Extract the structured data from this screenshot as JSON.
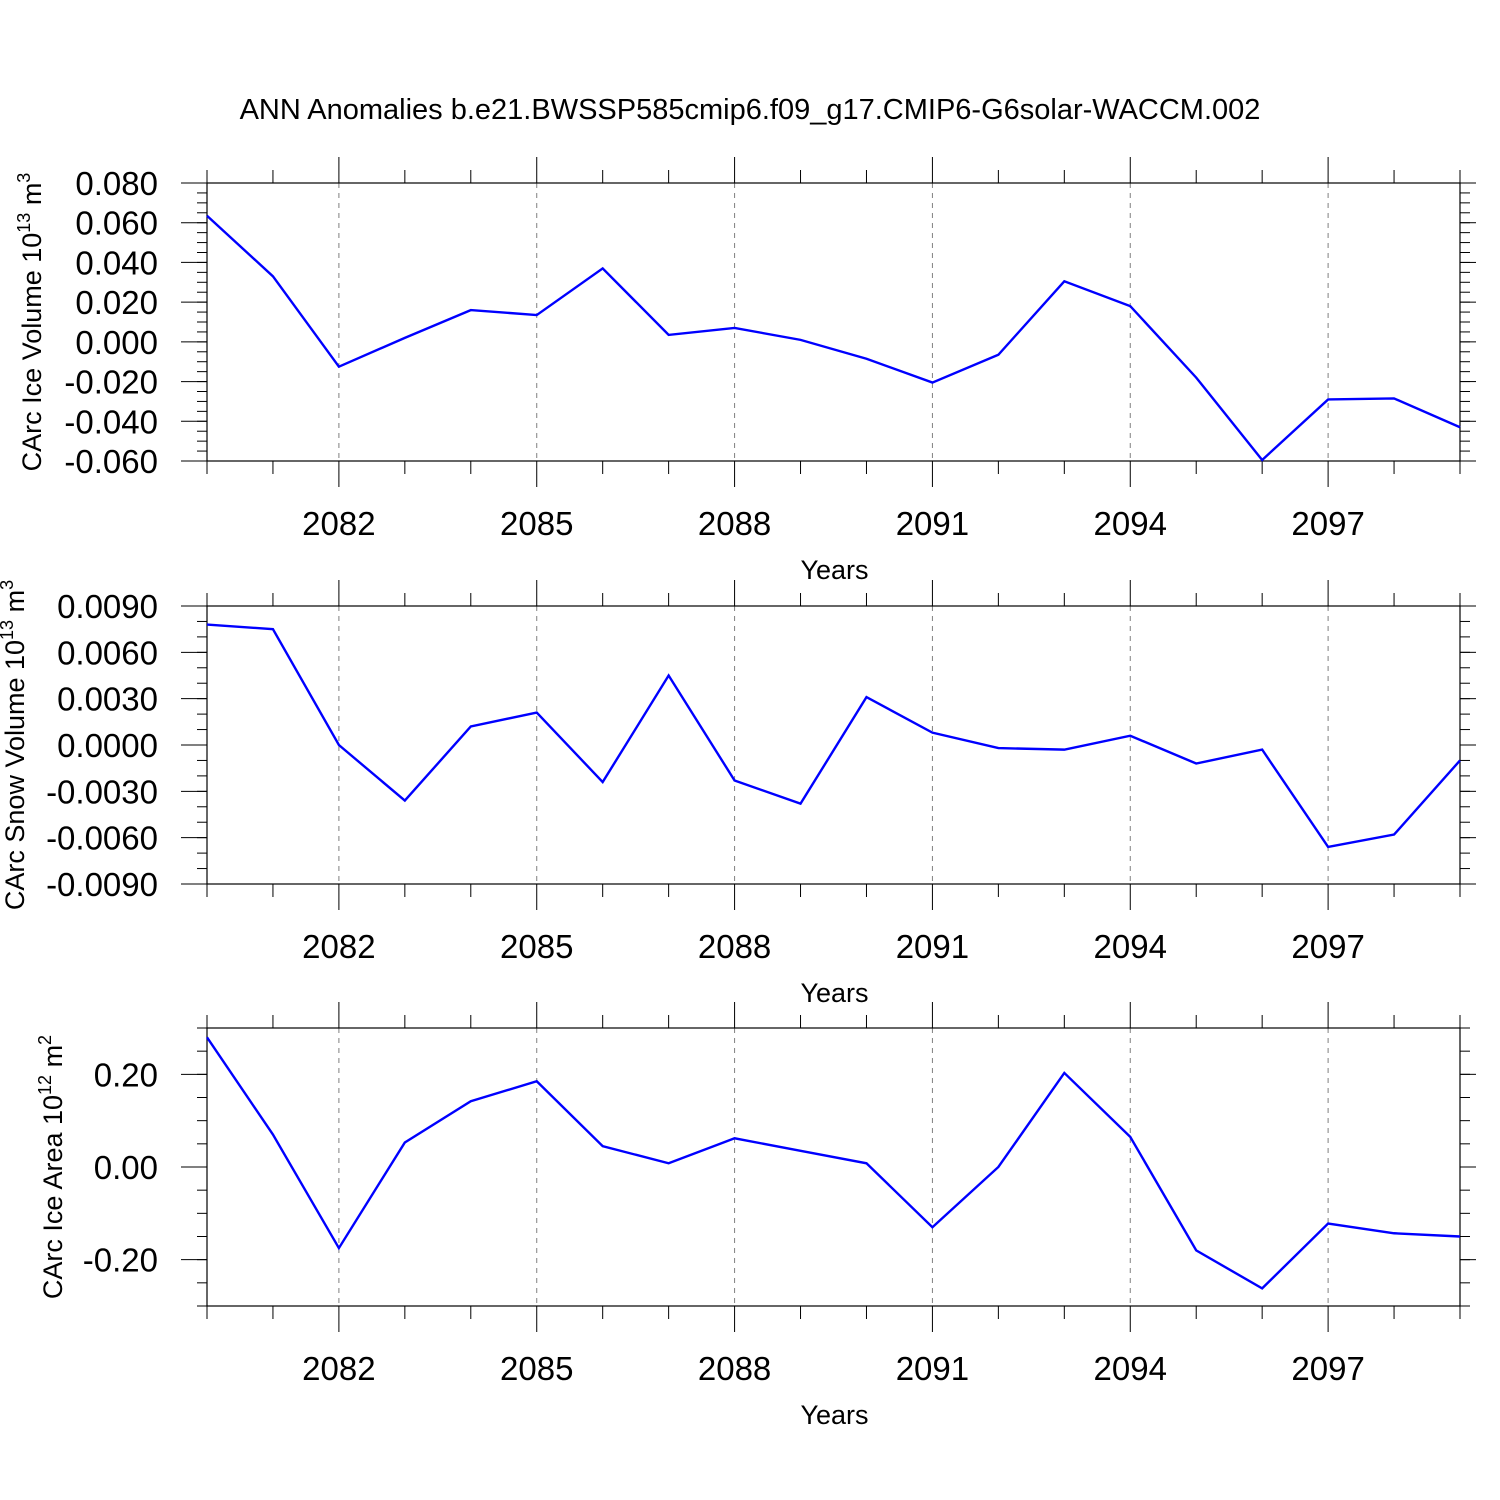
{
  "title": "ANN Anomalies b.e21.BWSSP585cmip6.f09_g17.CMIP6-G6solar-WACCM.002",
  "colors": {
    "line": "#0000ff",
    "axis": "#000000",
    "grid": "#808080",
    "background": "#ffffff"
  },
  "chart_data": [
    {
      "type": "line",
      "ylabel": "CArc Ice Volume 10",
      "ylabel_exp": "13",
      "ylabel_unit": " m",
      "ylabel_unit_exp": "3",
      "xlabel": "Years",
      "xlim": [
        2080,
        2099
      ],
      "ylim": [
        -0.06,
        0.08
      ],
      "yticks": [
        -0.06,
        -0.04,
        -0.02,
        0.0,
        0.02,
        0.04,
        0.06,
        0.08
      ],
      "ytick_labels": [
        "-0.060",
        "-0.040",
        "-0.020",
        "0.000",
        "0.020",
        "0.040",
        "0.060",
        "0.080"
      ],
      "yminor_step": 0.005,
      "xticks": [
        2082,
        2085,
        2088,
        2091,
        2094,
        2097
      ],
      "xtick_labels": [
        "2082",
        "2085",
        "2088",
        "2091",
        "2094",
        "2097"
      ],
      "grid": "vertical-dashed",
      "series": [
        {
          "x": [
            2080,
            2081,
            2082,
            2083,
            2084,
            2085,
            2086,
            2087,
            2088,
            2089,
            2090,
            2091,
            2092,
            2093,
            2094,
            2095,
            2096,
            2097,
            2098,
            2099
          ],
          "values": [
            0.0635,
            0.033,
            -0.0125,
            0.002,
            0.016,
            0.0135,
            0.037,
            0.0035,
            0.007,
            0.001,
            -0.0085,
            -0.0205,
            -0.0065,
            0.0305,
            0.018,
            -0.018,
            -0.0595,
            -0.029,
            -0.0285,
            -0.043
          ]
        }
      ]
    },
    {
      "type": "line",
      "ylabel": "CArc Snow Volume 10",
      "ylabel_exp": "13",
      "ylabel_unit": " m",
      "ylabel_unit_exp": "3",
      "xlabel": "Years",
      "xlim": [
        2080,
        2099
      ],
      "ylim": [
        -0.009,
        0.009
      ],
      "yticks": [
        -0.009,
        -0.006,
        -0.003,
        0.0,
        0.003,
        0.006,
        0.009
      ],
      "ytick_labels": [
        "-0.0090",
        "-0.0060",
        "-0.0030",
        "0.0000",
        "0.0030",
        "0.0060",
        "0.0090"
      ],
      "yminor_step": 0.001,
      "xticks": [
        2082,
        2085,
        2088,
        2091,
        2094,
        2097
      ],
      "xtick_labels": [
        "2082",
        "2085",
        "2088",
        "2091",
        "2094",
        "2097"
      ],
      "grid": "vertical-dashed",
      "series": [
        {
          "x": [
            2080,
            2081,
            2082,
            2083,
            2084,
            2085,
            2086,
            2087,
            2088,
            2089,
            2090,
            2091,
            2092,
            2093,
            2094,
            2095,
            2096,
            2097,
            2098,
            2099
          ],
          "values": [
            0.0078,
            0.0075,
            0.0,
            -0.0036,
            0.0012,
            0.0021,
            -0.0024,
            0.0045,
            -0.0023,
            -0.0038,
            0.0031,
            0.0008,
            -0.0002,
            -0.0003,
            0.0006,
            -0.0012,
            -0.0003,
            -0.0066,
            -0.0058,
            -0.001
          ]
        }
      ]
    },
    {
      "type": "line",
      "ylabel": "CArc Ice Area 10",
      "ylabel_exp": "12",
      "ylabel_unit": " m",
      "ylabel_unit_exp": "2",
      "xlabel": "Years",
      "xlim": [
        2080,
        2099
      ],
      "ylim": [
        -0.3,
        0.3
      ],
      "yticks": [
        -0.2,
        0.0,
        0.2
      ],
      "ytick_labels": [
        "-0.20",
        "0.00",
        "0.20"
      ],
      "yminor_step": 0.05,
      "xticks": [
        2082,
        2085,
        2088,
        2091,
        2094,
        2097
      ],
      "xtick_labels": [
        "2082",
        "2085",
        "2088",
        "2091",
        "2094",
        "2097"
      ],
      "grid": "vertical-dashed",
      "series": [
        {
          "x": [
            2080,
            2081,
            2082,
            2083,
            2084,
            2085,
            2086,
            2087,
            2088,
            2089,
            2090,
            2091,
            2092,
            2093,
            2094,
            2095,
            2096,
            2097,
            2098,
            2099
          ],
          "values": [
            0.28,
            0.07,
            -0.175,
            0.053,
            0.142,
            0.185,
            0.045,
            0.008,
            0.062,
            0.035,
            0.008,
            -0.13,
            0.0,
            0.203,
            0.065,
            -0.18,
            -0.262,
            -0.122,
            -0.143,
            -0.15
          ]
        }
      ]
    }
  ]
}
